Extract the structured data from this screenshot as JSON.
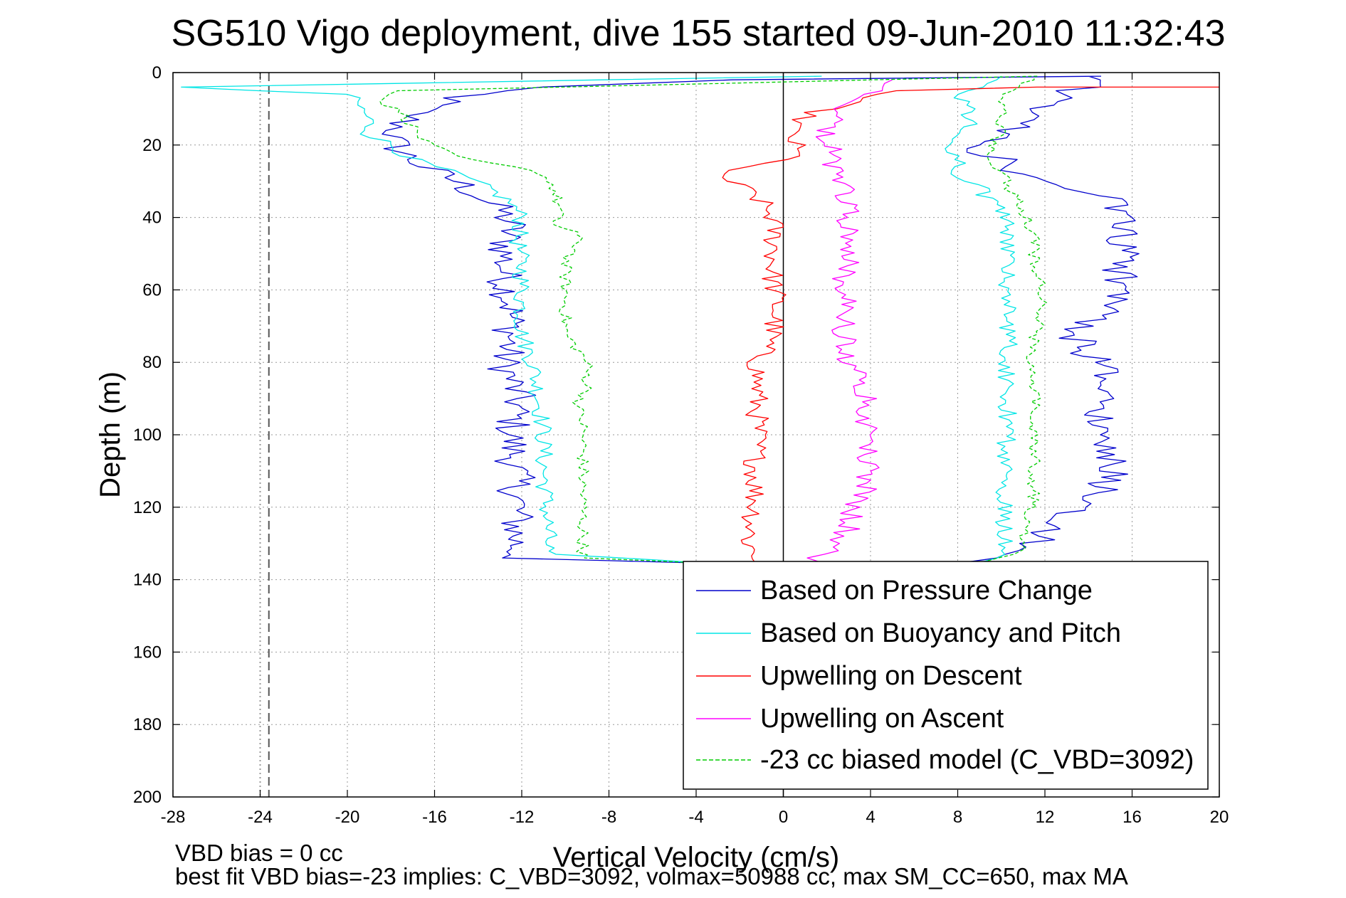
{
  "chart_data": {
    "type": "line",
    "title": "SG510 Vigo deployment, dive 155 started 09-Jun-2010 11:32:43",
    "xlabel": "Vertical Velocity (cm/s)",
    "ylabel": "Depth (m)",
    "xlim": [
      -28,
      20
    ],
    "ylim": [
      0,
      200
    ],
    "y_reversed": true,
    "grid": true,
    "xticks": [
      "-28",
      "-24",
      "-20",
      "-16",
      "-12",
      "-8",
      "-4",
      "0",
      "4",
      "8",
      "12",
      "16",
      "20"
    ],
    "yticks": [
      "0",
      "20",
      "40",
      "60",
      "80",
      "100",
      "120",
      "140",
      "160",
      "180",
      "200"
    ],
    "legend_position": "bottom-right",
    "reference_lines": [
      {
        "x": 0,
        "style": "solid",
        "color": "#000000"
      },
      {
        "x": -23.6,
        "style": "dashed",
        "color": "#555555"
      },
      {
        "x": -24.0,
        "style": "dotted",
        "color": "#999999"
      }
    ],
    "footnotes": [
      "VBD bias = 0 cc",
      "best fit VBD bias=-23 implies: C_VBD=3092, volmax=50988 cc, max SM_CC=650, max MA"
    ],
    "series": [
      {
        "name": "Based on Pressure Change",
        "color": "#0000cc",
        "style": "solid",
        "noise": 0.9,
        "points": [
          [
            14.3,
            1
          ],
          [
            -2,
            2
          ],
          [
            -12,
            4
          ],
          [
            -15,
            7
          ],
          [
            -16.5,
            10
          ],
          [
            -17.5,
            14
          ],
          [
            -18,
            18
          ],
          [
            -17.5,
            22
          ],
          [
            -16.5,
            26
          ],
          [
            -15,
            30
          ],
          [
            -14,
            34
          ],
          [
            -13,
            38
          ],
          [
            -12.5,
            42
          ],
          [
            -12.8,
            48
          ],
          [
            -12.8,
            56
          ],
          [
            -12.5,
            64
          ],
          [
            -12.5,
            72
          ],
          [
            -12.8,
            80
          ],
          [
            -12.2,
            90
          ],
          [
            -12.5,
            100
          ],
          [
            -12.3,
            110
          ],
          [
            -12.2,
            120
          ],
          [
            -12.3,
            128
          ],
          [
            -12.2,
            134
          ],
          [
            -4,
            135.5
          ],
          [
            -4,
            136.5
          ],
          [
            -4,
            136.5
          ],
          [
            8,
            135
          ],
          [
            10.5,
            133
          ],
          [
            11.5,
            130
          ],
          [
            12.5,
            126
          ],
          [
            13.5,
            120
          ],
          [
            14.5,
            116
          ],
          [
            15,
            110
          ],
          [
            14.5,
            100
          ],
          [
            14.8,
            90
          ],
          [
            14.5,
            80
          ],
          [
            13.5,
            75
          ],
          [
            13.5,
            70
          ],
          [
            14.5,
            66
          ],
          [
            15.5,
            60
          ],
          [
            15.5,
            50
          ],
          [
            15.5,
            40
          ],
          [
            15,
            34
          ],
          [
            13,
            31
          ],
          [
            11,
            28
          ],
          [
            10,
            24
          ],
          [
            8.5,
            20
          ],
          [
            10,
            18
          ],
          [
            11,
            14
          ],
          [
            12,
            10
          ],
          [
            13,
            6
          ],
          [
            14,
            3
          ],
          [
            14,
            1
          ]
        ]
      },
      {
        "name": "Based on Buoyancy and Pitch",
        "color": "#00e5e5",
        "style": "solid",
        "noise": 0.45,
        "points": [
          [
            2,
            1
          ],
          [
            -28,
            4
          ],
          [
            -20,
            6
          ],
          [
            -19.5,
            9
          ],
          [
            -19,
            13
          ],
          [
            -19,
            17
          ],
          [
            -18,
            20
          ],
          [
            -17,
            24
          ],
          [
            -15,
            28
          ],
          [
            -13.5,
            32
          ],
          [
            -12.5,
            36
          ],
          [
            -12,
            40
          ],
          [
            -12.2,
            46
          ],
          [
            -12,
            54
          ],
          [
            -12,
            60
          ],
          [
            -12,
            66
          ],
          [
            -12,
            72
          ],
          [
            -11.5,
            80
          ],
          [
            -11.2,
            90
          ],
          [
            -11,
            100
          ],
          [
            -11,
            108
          ],
          [
            -10.9,
            118
          ],
          [
            -10.8,
            126
          ],
          [
            -10.8,
            133
          ],
          [
            -3.5,
            135.5
          ],
          [
            -3.5,
            135.5
          ],
          [
            9.5,
            135
          ],
          [
            10.2,
            132
          ],
          [
            10.2,
            125
          ],
          [
            10,
            115
          ],
          [
            10.2,
            105
          ],
          [
            10.3,
            95
          ],
          [
            10.3,
            85
          ],
          [
            10.3,
            75
          ],
          [
            10.3,
            65
          ],
          [
            10.3,
            55
          ],
          [
            10.3,
            45
          ],
          [
            10.2,
            40
          ],
          [
            9,
            32
          ],
          [
            8,
            28
          ],
          [
            8,
            24
          ],
          [
            7.5,
            20
          ],
          [
            8.5,
            15
          ],
          [
            8.5,
            10
          ],
          [
            8.2,
            6
          ],
          [
            9,
            3
          ],
          [
            10,
            1
          ]
        ]
      },
      {
        "name": "Upwelling on Descent",
        "color": "#ff0000",
        "style": "solid",
        "noise": 0.55,
        "points": [
          [
            20,
            4
          ],
          [
            12,
            4
          ],
          [
            5,
            5
          ],
          [
            3,
            8
          ],
          [
            1,
            12
          ],
          [
            0.3,
            16
          ],
          [
            0.5,
            20
          ],
          [
            0.5,
            24
          ],
          [
            -3,
            27
          ],
          [
            -2.5,
            30
          ],
          [
            -1.5,
            33
          ],
          [
            -1,
            36
          ],
          [
            -0.5,
            40
          ],
          [
            -0.4,
            48
          ],
          [
            -0.5,
            56
          ],
          [
            -0.3,
            64
          ],
          [
            -0.5,
            72
          ],
          [
            -1.2,
            80
          ],
          [
            -1.2,
            90
          ],
          [
            -1.2,
            100
          ],
          [
            -1.3,
            110
          ],
          [
            -1.3,
            120
          ],
          [
            -1.6,
            130
          ],
          [
            -1,
            136
          ]
        ]
      },
      {
        "name": "Upwelling on Ascent",
        "color": "#ff00ff",
        "style": "solid",
        "noise": 0.6,
        "points": [
          [
            0.8,
            136
          ],
          [
            1.5,
            134
          ],
          [
            2.5,
            130
          ],
          [
            3,
            126
          ],
          [
            3.3,
            120
          ],
          [
            3.8,
            115
          ],
          [
            4,
            110
          ],
          [
            3.8,
            100
          ],
          [
            4,
            90
          ],
          [
            3.5,
            84
          ],
          [
            3,
            80
          ],
          [
            2.8,
            72
          ],
          [
            2.8,
            64
          ],
          [
            2.8,
            56
          ],
          [
            3,
            48
          ],
          [
            3,
            40
          ],
          [
            2.8,
            34
          ],
          [
            2.5,
            28
          ],
          [
            2.2,
            22
          ],
          [
            2,
            16
          ],
          [
            2.3,
            12
          ],
          [
            3.5,
            8
          ],
          [
            4.5,
            5
          ],
          [
            5,
            2
          ]
        ]
      },
      {
        "name": "-23 cc biased model (C_VBD=3092)",
        "color": "#00cc00",
        "style": "dashed",
        "noise": 0.3,
        "points": [
          [
            11.5,
            1
          ],
          [
            -17.5,
            5
          ],
          [
            -18.5,
            8
          ],
          [
            -17.5,
            11
          ],
          [
            -17,
            15
          ],
          [
            -16.5,
            19
          ],
          [
            -15.5,
            22
          ],
          [
            -14.5,
            24
          ],
          [
            -12.5,
            26
          ],
          [
            -11,
            28
          ],
          [
            -10.5,
            32
          ],
          [
            -10.3,
            38
          ],
          [
            -10.5,
            42
          ],
          [
            -9.5,
            44
          ],
          [
            -9.5,
            49
          ],
          [
            -10,
            52
          ],
          [
            -10,
            60
          ],
          [
            -10,
            66
          ],
          [
            -10,
            72
          ],
          [
            -9.5,
            76
          ],
          [
            -9,
            80
          ],
          [
            -9,
            88
          ],
          [
            -9.5,
            92
          ],
          [
            -9.2,
            96
          ],
          [
            -9.2,
            110
          ],
          [
            -9.2,
            120
          ],
          [
            -9.2,
            128
          ],
          [
            -9.2,
            134
          ],
          [
            -3.5,
            135.5
          ],
          [
            -3.5,
            135.5
          ],
          [
            9,
            135
          ],
          [
            10.8,
            133
          ],
          [
            11,
            128
          ],
          [
            11.2,
            124
          ],
          [
            11.5,
            118
          ],
          [
            11.5,
            110
          ],
          [
            11.5,
            100
          ],
          [
            11.5,
            90
          ],
          [
            11.3,
            82
          ],
          [
            11.5,
            74
          ],
          [
            11.8,
            68
          ],
          [
            11.8,
            60
          ],
          [
            11.5,
            52
          ],
          [
            11.5,
            46
          ],
          [
            11,
            38
          ],
          [
            10.5,
            33
          ],
          [
            10,
            28
          ],
          [
            9.5,
            22
          ],
          [
            10,
            16
          ],
          [
            10,
            12
          ],
          [
            10,
            8
          ],
          [
            10.5,
            5
          ],
          [
            11.5,
            1
          ]
        ]
      }
    ]
  }
}
